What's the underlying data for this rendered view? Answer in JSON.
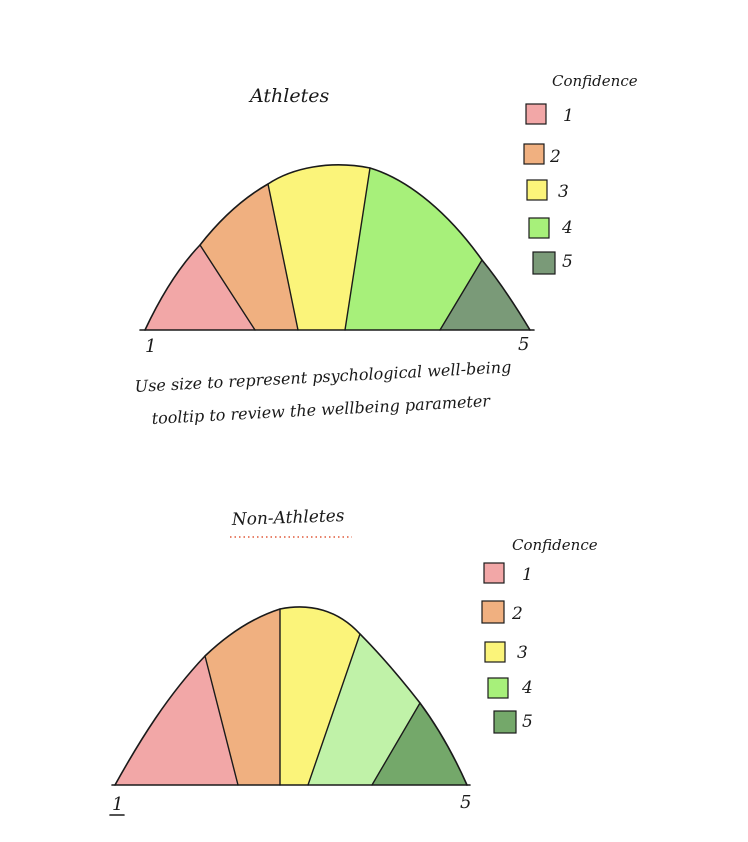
{
  "note": {
    "line1": "Use size to represent psychological well-being",
    "line2": "tooltip to review the wellbeing parameter"
  },
  "charts": [
    {
      "title": "Athletes",
      "axis_min_label": "1",
      "axis_max_label": "5",
      "legend_title": "Confidence",
      "segments": [
        {
          "level": "1",
          "color": "#f2a7a7"
        },
        {
          "level": "2",
          "color": "#f0b080"
        },
        {
          "level": "3",
          "color": "#fbf47a"
        },
        {
          "level": "4",
          "color": "#a7f07a"
        },
        {
          "level": "5",
          "color": "#7a9a78"
        }
      ]
    },
    {
      "title": "Non-Athletes",
      "axis_min_label": "1",
      "axis_max_label": "5",
      "legend_title": "Confidence",
      "segments": [
        {
          "level": "1",
          "color": "#f2a7a7"
        },
        {
          "level": "2",
          "color": "#f0b080"
        },
        {
          "level": "3",
          "color": "#fbf47a"
        },
        {
          "level": "4",
          "color": "#c0f2a8"
        },
        {
          "level": "5",
          "color": "#74a86a"
        }
      ]
    }
  ]
}
